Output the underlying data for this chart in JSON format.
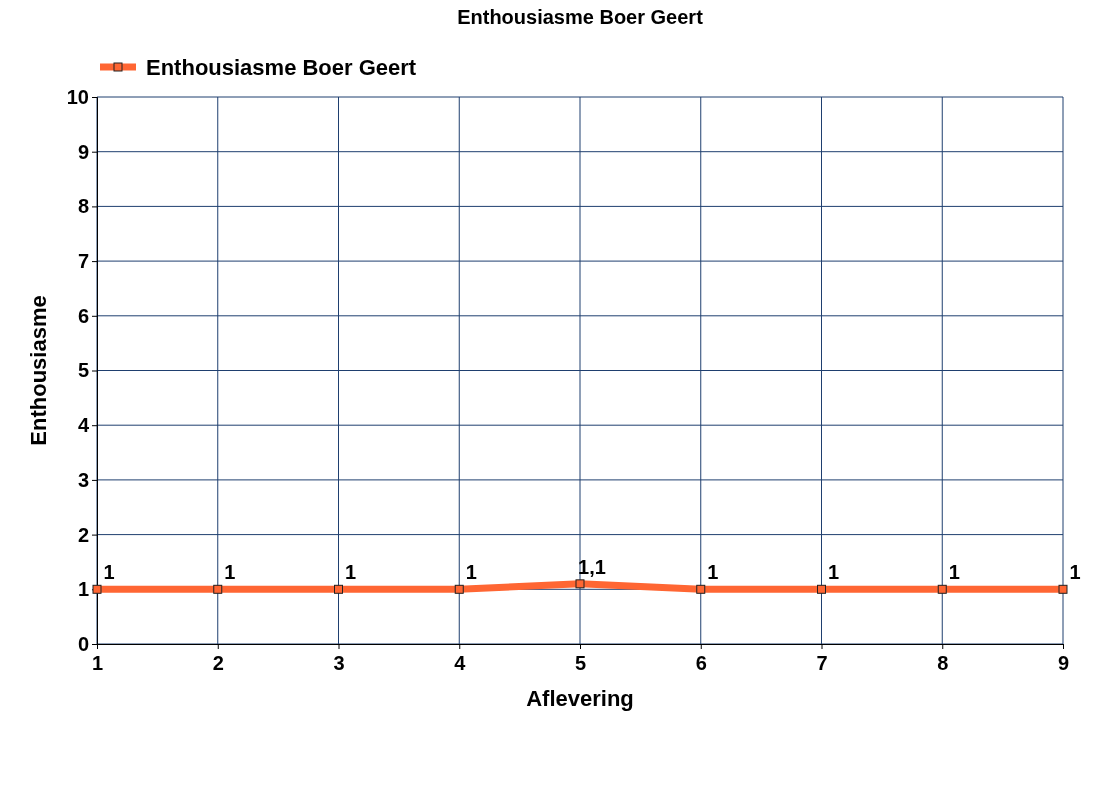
{
  "chart_data": {
    "type": "line",
    "title": "Enthousiasme Boer Geert",
    "xlabel": "Aflevering",
    "ylabel": "Enthousiasme",
    "x": [
      1,
      2,
      3,
      4,
      5,
      6,
      7,
      8,
      9
    ],
    "series": [
      {
        "name": "Enthousiasme Boer Geert",
        "color": "#ff6633",
        "values": [
          1,
          1,
          1,
          1,
          1.1,
          1,
          1,
          1,
          1
        ],
        "value_labels": [
          "1",
          "1",
          "1",
          "1",
          "1,1",
          "1",
          "1",
          "1",
          "1"
        ]
      }
    ],
    "xlim": [
      1,
      9
    ],
    "xticks": [
      1,
      2,
      3,
      4,
      5,
      6,
      7,
      8,
      9
    ],
    "ylim": [
      0,
      10
    ],
    "yticks": [
      0,
      1,
      2,
      3,
      4,
      5,
      6,
      7,
      8,
      9,
      10
    ],
    "grid": true,
    "legend": "top left",
    "marker": "square",
    "line_style": "solid"
  }
}
